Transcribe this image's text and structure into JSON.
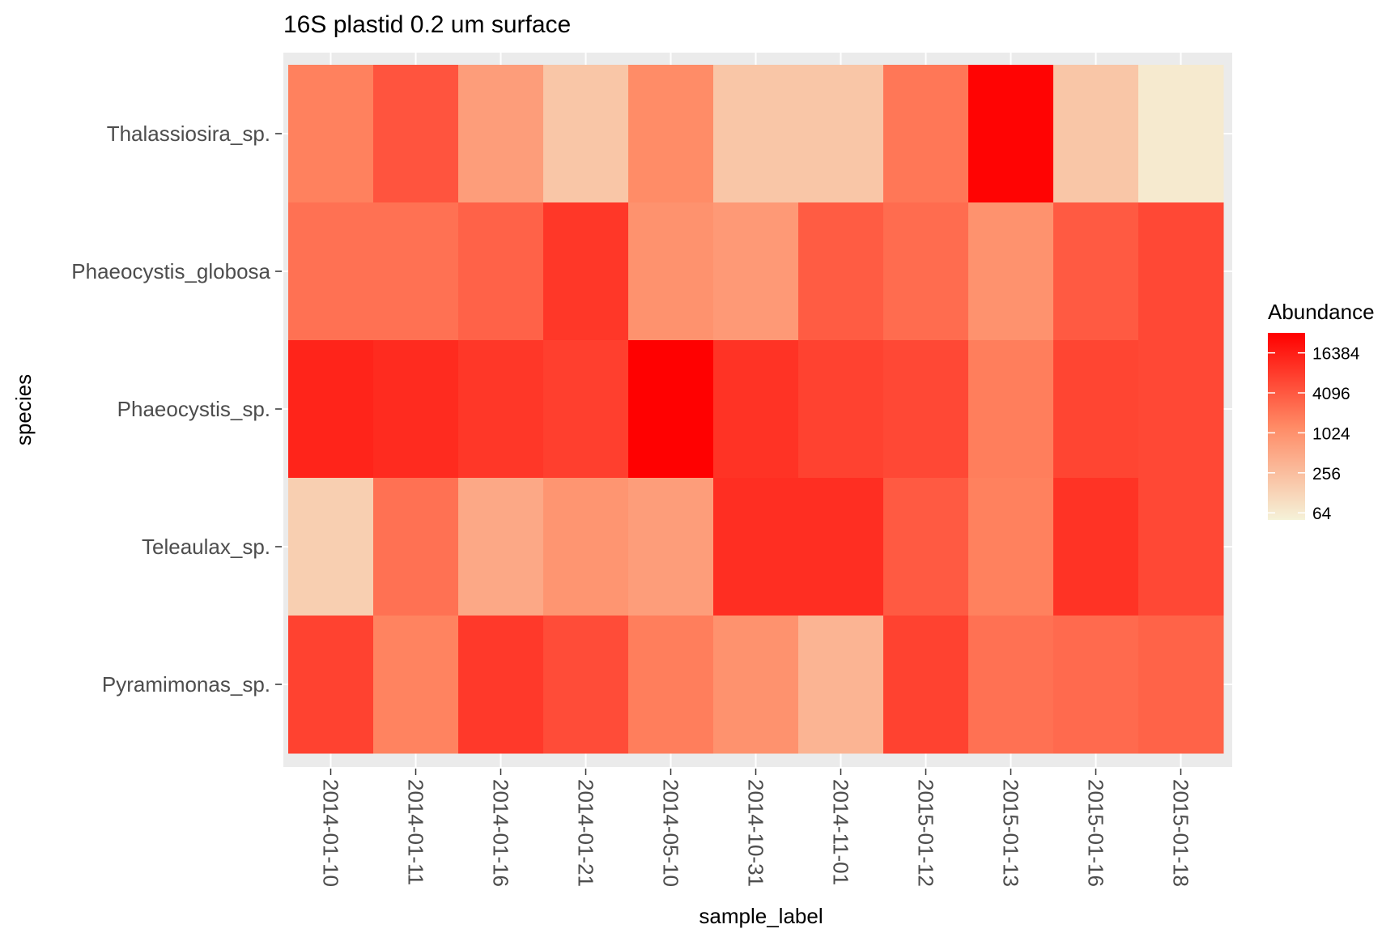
{
  "chart_data": {
    "type": "heatmap",
    "title": "16S plastid 0.2 um surface",
    "xlabel": "sample_label",
    "ylabel": "species",
    "x": [
      "2014-01-10",
      "2014-01-11",
      "2014-01-16",
      "2014-01-21",
      "2014-05-10",
      "2014-10-31",
      "2014-11-01",
      "2015-01-12",
      "2015-01-13",
      "2015-01-16",
      "2015-01-18"
    ],
    "y": [
      "Thalassiosira_sp.",
      "Phaeocystis_globosa",
      "Phaeocystis_sp.",
      "Teleaulax_sp.",
      "Pyramimonas_sp."
    ],
    "values": [
      [
        1600,
        4500,
        700,
        200,
        1200,
        200,
        200,
        2000,
        30000,
        200,
        64
      ],
      [
        2300,
        2300,
        3300,
        9000,
        1000,
        800,
        3800,
        2600,
        1000,
        4000,
        6000
      ],
      [
        14000,
        12000,
        9000,
        7500,
        32000,
        10000,
        7000,
        6000,
        1700,
        6500,
        6000
      ],
      [
        150,
        2300,
        500,
        900,
        700,
        11000,
        11000,
        4000,
        1600,
        10000,
        6000
      ],
      [
        7000,
        1500,
        8500,
        5500,
        1700,
        1000,
        350,
        7000,
        2300,
        2700,
        3200
      ]
    ],
    "legend": {
      "title": "Abundance",
      "scale": "log2",
      "breaks": [
        64,
        256,
        1024,
        4096,
        16384
      ],
      "range": [
        50,
        32768
      ],
      "colors": {
        "low": "#f5f2d8",
        "mid": "#ff8a65",
        "high": "#ff0000"
      }
    },
    "grid": true,
    "legend_position": "right"
  }
}
